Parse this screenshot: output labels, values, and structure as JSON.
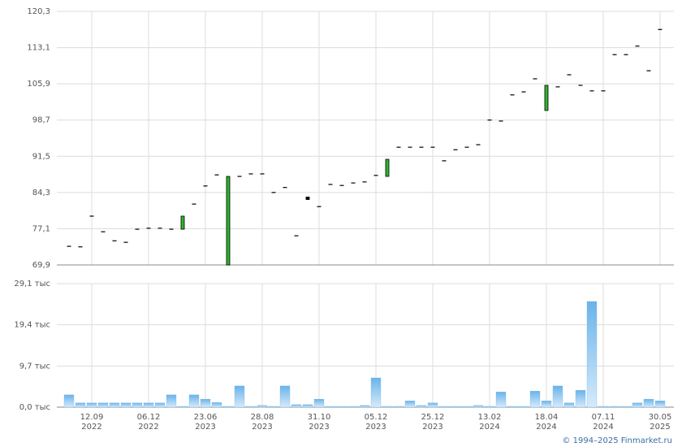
{
  "chart_data": {
    "type": "candlestick",
    "categories": [
      null,
      null,
      "12.09\n2022",
      null,
      null,
      null,
      null,
      "06.12\n2022",
      null,
      null,
      null,
      null,
      "23.06\n2023",
      null,
      null,
      null,
      null,
      "28.08\n2023",
      null,
      null,
      null,
      null,
      "31.10\n2023",
      null,
      null,
      null,
      null,
      "05.12\n2023",
      null,
      null,
      null,
      null,
      "25.12\n2023",
      null,
      null,
      null,
      null,
      "13.02\n2024",
      null,
      null,
      null,
      null,
      "18.04\n2024",
      null,
      null,
      null,
      null,
      "07.11\n2024",
      null,
      null,
      null,
      null,
      "30.05\n2025"
    ],
    "open": [
      73.6,
      73.5,
      79.6,
      76.5,
      74.7,
      74.4,
      77.0,
      77.2,
      77.2,
      77.0,
      77.0,
      82.0,
      85.6,
      87.8,
      69.9,
      87.5,
      88.0,
      88.0,
      84.3,
      85.3,
      75.7,
      83.4,
      81.5,
      85.9,
      85.7,
      86.2,
      86.4,
      87.7,
      87.5,
      93.3,
      93.3,
      93.3,
      93.3,
      90.6,
      92.8,
      93.3,
      93.8,
      98.7,
      98.5,
      103.7,
      104.3,
      106.9,
      100.6,
      105.3,
      107.7,
      105.6,
      104.5,
      104.5,
      111.7,
      111.7,
      113.4,
      108.5,
      116.7
    ],
    "close": [
      73.6,
      73.5,
      79.6,
      76.5,
      74.7,
      74.4,
      77.0,
      77.2,
      77.2,
      77.0,
      79.6,
      82.0,
      85.6,
      87.8,
      87.5,
      87.5,
      88.0,
      88.0,
      84.3,
      85.3,
      75.7,
      82.9,
      81.5,
      85.9,
      85.7,
      86.2,
      86.4,
      87.7,
      90.9,
      93.3,
      93.3,
      93.3,
      93.3,
      90.6,
      92.8,
      93.3,
      93.8,
      98.7,
      98.5,
      103.7,
      104.3,
      106.9,
      105.6,
      105.3,
      107.7,
      105.6,
      104.5,
      104.5,
      111.7,
      111.7,
      113.4,
      108.5,
      116.7
    ],
    "up_color": "#2db52d",
    "down_color": "#000000",
    "ylim": [
      69.9,
      120.3
    ],
    "yticks": [
      {
        "value": 69.9,
        "label": "69,9"
      },
      {
        "value": 77.1,
        "label": "77,1"
      },
      {
        "value": 84.3,
        "label": "84,3"
      },
      {
        "value": 91.5,
        "label": "91,5"
      },
      {
        "value": 98.7,
        "label": "98,7"
      },
      {
        "value": 105.9,
        "label": "105,9"
      },
      {
        "value": 113.1,
        "label": "113,1"
      },
      {
        "value": 120.3,
        "label": "120,3"
      }
    ],
    "grid": true,
    "volume": {
      "color": "#6ab3ea",
      "values": [
        2.9,
        1.0,
        1.0,
        1.0,
        1.0,
        1.0,
        1.0,
        1.0,
        1.0,
        2.9,
        0.2,
        2.9,
        1.9,
        1.1,
        0.2,
        5.0,
        0.2,
        0.4,
        0.2,
        5.0,
        0.6,
        0.6,
        1.9,
        0.2,
        0.2,
        0.2,
        0.4,
        6.9,
        0.2,
        0.2,
        1.5,
        0.4,
        1.0,
        0.2,
        0.2,
        0.2,
        0.4,
        0.2,
        3.6,
        0.2,
        0.2,
        3.8,
        1.5,
        5.0,
        1.0,
        4.0,
        24.9,
        0.2,
        0.2,
        0.2,
        1.0,
        1.9,
        1.5
      ],
      "ylim": [
        0,
        29.1
      ],
      "yticks": [
        {
          "value": 0,
          "label": "0,0 тыс"
        },
        {
          "value": 9.7,
          "label": "9,7 тыс"
        },
        {
          "value": 19.4,
          "label": "19,4 тыс"
        },
        {
          "value": 29.1,
          "label": "29,1 тыс"
        }
      ]
    },
    "source": "© 1994–2025 Finmarket.ru"
  }
}
